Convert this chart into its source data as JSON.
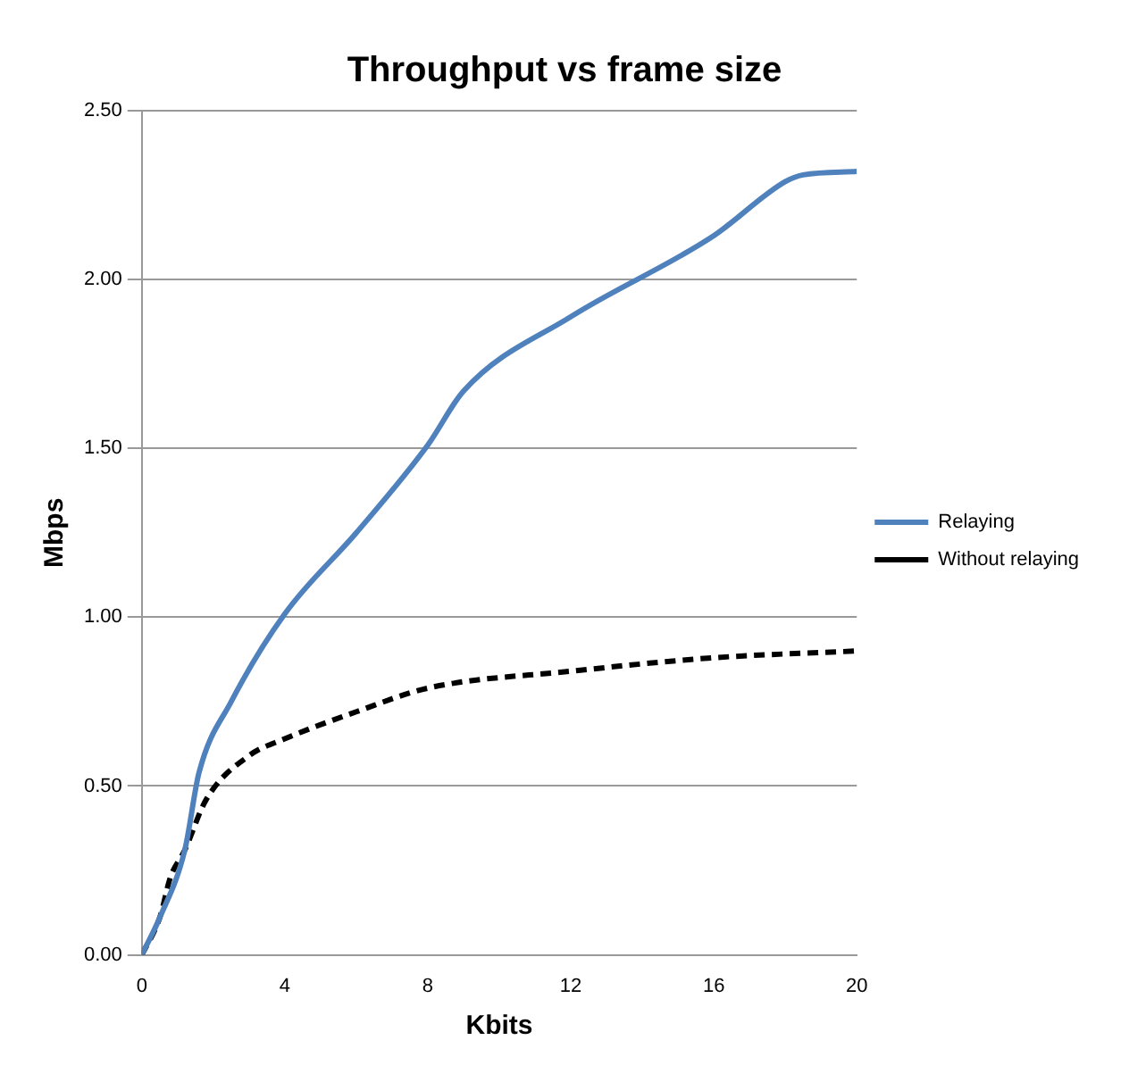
{
  "chart_data": {
    "type": "line",
    "title": "Throughput vs frame size",
    "xlabel": "Kbits",
    "ylabel": "Mbps",
    "xlim": [
      0,
      20
    ],
    "xticks": [
      0,
      4,
      8,
      12,
      16,
      20
    ],
    "ylim": [
      0,
      2.5
    ],
    "yticks": [
      {
        "value": 0,
        "label": "0.00"
      },
      {
        "value": 0.5,
        "label": "0.50"
      },
      {
        "value": 1,
        "label": "1.00"
      },
      {
        "value": 1.5,
        "label": "1.50"
      },
      {
        "value": 2,
        "label": "2.00"
      },
      {
        "value": 2.5,
        "label": "2.50"
      }
    ],
    "grid": "y",
    "legend": "right",
    "marker": "none",
    "series": [
      {
        "name": "Relaying",
        "color": "#4f81bd",
        "line_style": "solid",
        "x": [
          0,
          0.5,
          1.2,
          1.6,
          2.5,
          4,
          6,
          8,
          9,
          12,
          16,
          18,
          18.5,
          20
        ],
        "values": [
          0,
          0.11,
          0.31,
          0.54,
          0.75,
          1.01,
          1.25,
          1.51,
          1.67,
          1.89,
          2.13,
          2.29,
          2.31,
          2.32
        ]
      },
      {
        "name": "Without relaying",
        "color": "#000000",
        "line_style": "dashed",
        "x": [
          0,
          0.5,
          0.8,
          1.2,
          1.8,
          3,
          4,
          6,
          8,
          12,
          16,
          20
        ],
        "values": [
          0,
          0.11,
          0.23,
          0.31,
          0.46,
          0.59,
          0.64,
          0.72,
          0.79,
          0.84,
          0.88,
          0.9
        ]
      }
    ]
  }
}
